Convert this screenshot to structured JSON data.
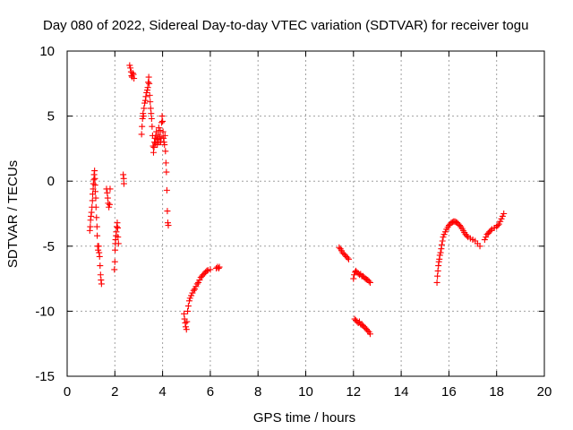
{
  "chart_data": {
    "type": "scatter",
    "title": "Day 080 of 2022, Sidereal Day-to-day VTEC variation (SDTVAR) for receiver togu",
    "xlabel": "GPS time / hours",
    "ylabel": "SDTVAR / TECUs",
    "xlim": [
      0,
      20
    ],
    "ylim": [
      -15,
      10
    ],
    "x_ticks": [
      "0",
      "2",
      "4",
      "6",
      "8",
      "10",
      "12",
      "14",
      "16",
      "18",
      "20"
    ],
    "y_ticks": [
      "10",
      "5",
      "0",
      "-5",
      "-10",
      "-15"
    ],
    "grid": true,
    "marker": "+",
    "color": "#ff0000",
    "series": [
      {
        "name": "SDTVAR",
        "points": [
          [
            0.95,
            -3.8
          ],
          [
            0.97,
            -3.5
          ],
          [
            0.98,
            -3.0
          ],
          [
            1.0,
            -2.7
          ],
          [
            1.02,
            -2.4
          ],
          [
            1.04,
            -2.0
          ],
          [
            1.06,
            -1.5
          ],
          [
            1.07,
            -1.0
          ],
          [
            1.09,
            -0.6
          ],
          [
            1.1,
            -0.2
          ],
          [
            1.12,
            0.1
          ],
          [
            1.13,
            0.5
          ],
          [
            1.15,
            0.8
          ],
          [
            1.16,
            0.2
          ],
          [
            1.17,
            -0.3
          ],
          [
            1.18,
            -0.8
          ],
          [
            1.2,
            -1.3
          ],
          [
            1.21,
            -2.0
          ],
          [
            1.23,
            -2.8
          ],
          [
            1.25,
            -3.5
          ],
          [
            1.26,
            -4.2
          ],
          [
            1.28,
            -5.0
          ],
          [
            1.3,
            -5.3
          ],
          [
            1.32,
            -5.0
          ],
          [
            1.34,
            -5.5
          ],
          [
            1.36,
            -5.8
          ],
          [
            1.38,
            -6.5
          ],
          [
            1.4,
            -7.2
          ],
          [
            1.42,
            -7.6
          ],
          [
            1.44,
            -7.9
          ],
          [
            1.65,
            -0.6
          ],
          [
            1.68,
            -0.9
          ],
          [
            1.7,
            -1.3
          ],
          [
            1.72,
            -1.7
          ],
          [
            1.75,
            -2.0
          ],
          [
            1.78,
            -1.8
          ],
          [
            1.8,
            -0.6
          ],
          [
            1.98,
            -6.8
          ],
          [
            2.0,
            -6.2
          ],
          [
            2.01,
            -5.3
          ],
          [
            2.02,
            -4.8
          ],
          [
            2.03,
            -4.5
          ],
          [
            2.05,
            -4.2
          ],
          [
            2.06,
            -3.9
          ],
          [
            2.08,
            -3.5
          ],
          [
            2.1,
            -3.2
          ],
          [
            2.12,
            -3.6
          ],
          [
            2.13,
            -4.3
          ],
          [
            2.15,
            -4.8
          ],
          [
            2.35,
            0.5
          ],
          [
            2.37,
            0.2
          ],
          [
            2.38,
            -0.2
          ],
          [
            2.62,
            8.9
          ],
          [
            2.65,
            8.7
          ],
          [
            2.68,
            8.4
          ],
          [
            2.7,
            8.1
          ],
          [
            2.72,
            8.0
          ],
          [
            2.75,
            8.3
          ],
          [
            2.78,
            8.2
          ],
          [
            2.8,
            7.9
          ],
          [
            3.12,
            3.6
          ],
          [
            3.14,
            4.2
          ],
          [
            3.16,
            4.8
          ],
          [
            3.18,
            5.2
          ],
          [
            3.2,
            5.0
          ],
          [
            3.22,
            5.6
          ],
          [
            3.25,
            6.0
          ],
          [
            3.28,
            6.2
          ],
          [
            3.3,
            6.5
          ],
          [
            3.33,
            6.8
          ],
          [
            3.36,
            7.0
          ],
          [
            3.38,
            7.2
          ],
          [
            3.4,
            7.6
          ],
          [
            3.42,
            8.0
          ],
          [
            3.44,
            7.5
          ],
          [
            3.46,
            6.6
          ],
          [
            3.48,
            6.1
          ],
          [
            3.5,
            5.6
          ],
          [
            3.52,
            5.2
          ],
          [
            3.54,
            4.8
          ],
          [
            3.56,
            4.2
          ],
          [
            3.58,
            3.5
          ],
          [
            3.6,
            2.7
          ],
          [
            3.62,
            2.2
          ],
          [
            3.64,
            2.6
          ],
          [
            3.66,
            3.0
          ],
          [
            3.68,
            3.3
          ],
          [
            3.7,
            2.9
          ],
          [
            3.72,
            3.5
          ],
          [
            3.74,
            3.8
          ],
          [
            3.76,
            3.2
          ],
          [
            3.78,
            2.8
          ],
          [
            3.8,
            3.2
          ],
          [
            3.82,
            3.6
          ],
          [
            3.84,
            4.1
          ],
          [
            3.86,
            3.0
          ],
          [
            3.88,
            3.4
          ],
          [
            3.9,
            3.9
          ],
          [
            3.92,
            3.0
          ],
          [
            3.94,
            3.3
          ],
          [
            3.96,
            4.5
          ],
          [
            3.98,
            5.0
          ],
          [
            4.0,
            4.6
          ],
          [
            4.02,
            3.8
          ],
          [
            4.04,
            3.3
          ],
          [
            4.06,
            3.0
          ],
          [
            4.08,
            2.8
          ],
          [
            4.1,
            3.5
          ],
          [
            4.12,
            2.3
          ],
          [
            4.14,
            1.4
          ],
          [
            4.16,
            0.7
          ],
          [
            4.18,
            -0.7
          ],
          [
            4.2,
            -2.3
          ],
          [
            4.22,
            -3.2
          ],
          [
            4.24,
            -3.4
          ],
          [
            4.9,
            -10.2
          ],
          [
            4.92,
            -10.6
          ],
          [
            4.95,
            -10.9
          ],
          [
            4.97,
            -11.2
          ],
          [
            5.0,
            -11.4
          ],
          [
            5.02,
            -10.8
          ],
          [
            5.05,
            -10.0
          ],
          [
            5.08,
            -9.6
          ],
          [
            5.12,
            -9.2
          ],
          [
            5.15,
            -9.0
          ],
          [
            5.2,
            -8.8
          ],
          [
            5.25,
            -8.6
          ],
          [
            5.3,
            -8.4
          ],
          [
            5.35,
            -8.3
          ],
          [
            5.4,
            -8.1
          ],
          [
            5.45,
            -7.9
          ],
          [
            5.5,
            -7.8
          ],
          [
            5.55,
            -7.6
          ],
          [
            5.6,
            -7.4
          ],
          [
            5.65,
            -7.3
          ],
          [
            5.7,
            -7.2
          ],
          [
            5.75,
            -7.1
          ],
          [
            5.8,
            -7.0
          ],
          [
            5.85,
            -6.9
          ],
          [
            5.9,
            -6.85
          ],
          [
            6.0,
            -6.8
          ],
          [
            6.25,
            -6.7
          ],
          [
            6.3,
            -6.6
          ],
          [
            6.35,
            -6.7
          ],
          [
            6.38,
            -6.6
          ],
          [
            11.4,
            -5.1
          ],
          [
            11.45,
            -5.2
          ],
          [
            11.5,
            -5.35
          ],
          [
            11.55,
            -5.5
          ],
          [
            11.6,
            -5.6
          ],
          [
            11.65,
            -5.7
          ],
          [
            11.7,
            -5.8
          ],
          [
            11.75,
            -5.9
          ],
          [
            11.8,
            -6.0
          ],
          [
            12.0,
            -7.5
          ],
          [
            12.03,
            -7.2
          ],
          [
            12.07,
            -7.0
          ],
          [
            12.1,
            -6.9
          ],
          [
            12.15,
            -7.0
          ],
          [
            12.2,
            -7.1
          ],
          [
            12.25,
            -7.2
          ],
          [
            12.3,
            -7.15
          ],
          [
            12.35,
            -7.3
          ],
          [
            12.4,
            -7.3
          ],
          [
            12.45,
            -7.4
          ],
          [
            12.5,
            -7.5
          ],
          [
            12.55,
            -7.55
          ],
          [
            12.6,
            -7.6
          ],
          [
            12.65,
            -7.7
          ],
          [
            12.7,
            -7.8
          ],
          [
            12.05,
            -10.6
          ],
          [
            12.1,
            -10.7
          ],
          [
            12.15,
            -10.8
          ],
          [
            12.2,
            -10.9
          ],
          [
            12.25,
            -10.8
          ],
          [
            12.3,
            -11.0
          ],
          [
            12.35,
            -11.05
          ],
          [
            12.4,
            -11.1
          ],
          [
            12.45,
            -11.2
          ],
          [
            12.5,
            -11.3
          ],
          [
            12.55,
            -11.4
          ],
          [
            12.6,
            -11.5
          ],
          [
            12.65,
            -11.6
          ],
          [
            12.7,
            -11.75
          ],
          [
            15.5,
            -7.8
          ],
          [
            15.52,
            -7.3
          ],
          [
            15.54,
            -6.9
          ],
          [
            15.56,
            -6.5
          ],
          [
            15.58,
            -6.2
          ],
          [
            15.6,
            -6.0
          ],
          [
            15.62,
            -5.7
          ],
          [
            15.65,
            -5.5
          ],
          [
            15.68,
            -5.2
          ],
          [
            15.7,
            -4.9
          ],
          [
            15.73,
            -4.6
          ],
          [
            15.76,
            -4.3
          ],
          [
            15.8,
            -4.1
          ],
          [
            15.85,
            -3.9
          ],
          [
            15.9,
            -3.7
          ],
          [
            15.95,
            -3.55
          ],
          [
            16.0,
            -3.4
          ],
          [
            16.05,
            -3.3
          ],
          [
            16.1,
            -3.2
          ],
          [
            16.15,
            -3.15
          ],
          [
            16.2,
            -3.1
          ],
          [
            16.25,
            -3.1
          ],
          [
            16.3,
            -3.15
          ],
          [
            16.35,
            -3.2
          ],
          [
            16.4,
            -3.3
          ],
          [
            16.45,
            -3.4
          ],
          [
            16.5,
            -3.5
          ],
          [
            16.55,
            -3.65
          ],
          [
            16.6,
            -3.8
          ],
          [
            16.65,
            -3.95
          ],
          [
            16.7,
            -4.1
          ],
          [
            16.75,
            -4.2
          ],
          [
            16.8,
            -4.3
          ],
          [
            16.9,
            -4.4
          ],
          [
            17.0,
            -4.5
          ],
          [
            17.1,
            -4.6
          ],
          [
            17.2,
            -4.8
          ],
          [
            17.3,
            -5.0
          ],
          [
            17.5,
            -4.5
          ],
          [
            17.55,
            -4.3
          ],
          [
            17.6,
            -4.1
          ],
          [
            17.65,
            -4.0
          ],
          [
            17.7,
            -3.9
          ],
          [
            17.75,
            -3.8
          ],
          [
            17.8,
            -3.7
          ],
          [
            17.9,
            -3.6
          ],
          [
            18.0,
            -3.5
          ],
          [
            18.05,
            -3.4
          ],
          [
            18.1,
            -3.3
          ],
          [
            18.15,
            -3.1
          ],
          [
            18.2,
            -2.9
          ],
          [
            18.25,
            -2.7
          ],
          [
            18.3,
            -2.5
          ]
        ]
      }
    ]
  }
}
